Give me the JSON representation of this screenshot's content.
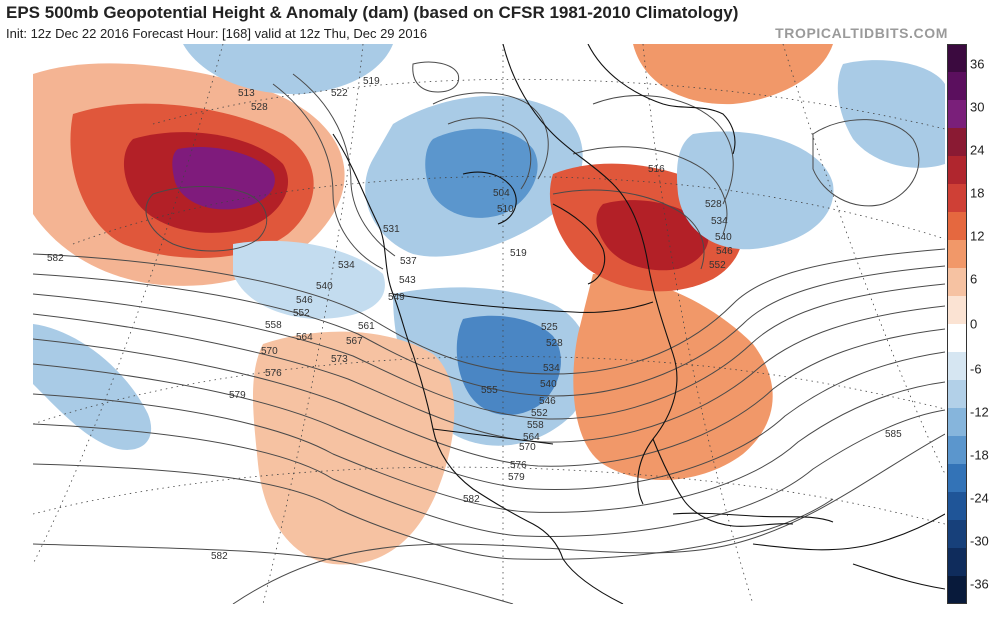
{
  "header": {
    "title": "EPS 500mb Geopotential Height & Anomaly (dam) (based on CFSR 1981-2010 Climatology)",
    "subtitle": "Init: 12z Dec 22 2016   Forecast Hour: [168]   valid at 12z Thu, Dec 29 2016",
    "brand": "TROPICALTIDBITS.COM"
  },
  "colorbar": {
    "labels": [
      "36",
      "30",
      "24",
      "18",
      "12",
      "6",
      "0",
      "-6",
      "-12",
      "-18",
      "-24",
      "-30",
      "-36"
    ],
    "colors": [
      "#3b0a3f",
      "#5b0f5e",
      "#7a1f7a",
      "#8a1a33",
      "#b0262e",
      "#cf4036",
      "#e5683f",
      "#f19869",
      "#f6c2a2",
      "#fbe3d3",
      "#ffffff",
      "#d6e6f2",
      "#b2d0e8",
      "#86b5dc",
      "#5b96cd",
      "#3373b7",
      "#1f5598",
      "#17407a",
      "#0f2c5c",
      "#081a3b"
    ]
  },
  "contours": {
    "labels": [
      "513",
      "528",
      "519",
      "522",
      "531",
      "534",
      "537",
      "540",
      "543",
      "546",
      "549",
      "552",
      "555",
      "558",
      "561",
      "564",
      "567",
      "570",
      "573",
      "576",
      "579",
      "582",
      "585",
      "516",
      "525",
      "510",
      "504"
    ]
  },
  "anomaly_regions": [
    {
      "name": "Gulf of Alaska ridge",
      "anomaly": "36"
    },
    {
      "name": "Southwest US / Mexico ridge",
      "anomaly": "6"
    },
    {
      "name": "Eastern US ridge",
      "anomaly": "18"
    },
    {
      "name": "Labrador / Northeast Canada ridge",
      "anomaly": "24"
    },
    {
      "name": "Central US trough",
      "anomaly": "-18"
    },
    {
      "name": "Hudson Bay trough",
      "anomaly": "-18"
    },
    {
      "name": "North Atlantic trough",
      "anomaly": "-12"
    },
    {
      "name": "Central Pacific trough",
      "anomaly": "-6"
    }
  ]
}
